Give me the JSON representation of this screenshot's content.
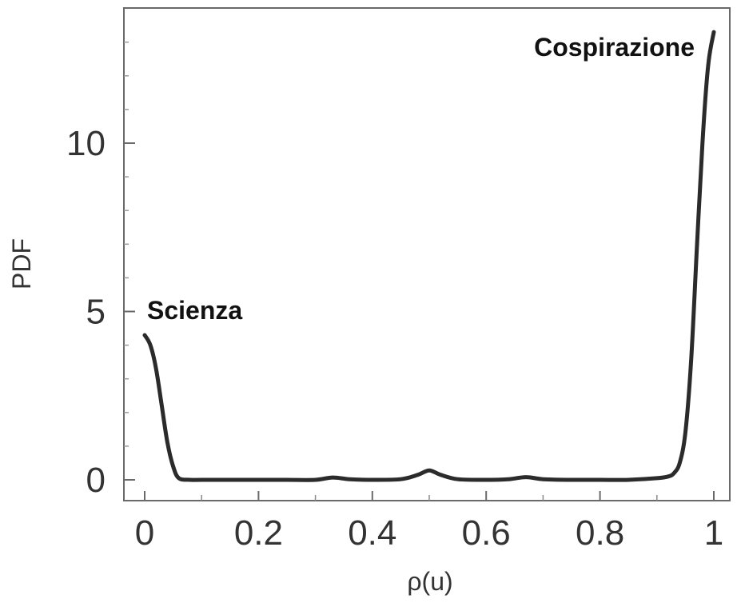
{
  "chart_data": {
    "type": "line",
    "title": "",
    "xlabel": "ρ(u)",
    "ylabel": "PDF",
    "xlim": [
      0,
      1.0
    ],
    "ylim": [
      -0.5,
      14
    ],
    "x_ticks": [
      0,
      0.2,
      0.4,
      0.6,
      0.8,
      1
    ],
    "x_tick_labels": [
      "0",
      "0.2",
      "0.4",
      "0.6",
      "0.8",
      "1"
    ],
    "y_ticks": [
      0,
      5,
      10
    ],
    "y_tick_labels": [
      "0",
      "5",
      "10"
    ],
    "grid": false,
    "legend": "none",
    "line_color": "#2b2b2b",
    "series": [
      {
        "x": [
          0,
          0.01,
          0.02,
          0.03,
          0.04,
          0.05,
          0.06,
          0.08,
          0.1,
          0.15,
          0.2,
          0.25,
          0.3,
          0.33,
          0.36,
          0.4,
          0.45,
          0.48,
          0.5,
          0.52,
          0.55,
          0.6,
          0.64,
          0.67,
          0.7,
          0.75,
          0.8,
          0.85,
          0.9,
          0.92,
          0.93,
          0.94,
          0.95,
          0.96,
          0.97,
          0.98,
          0.99,
          1.0
        ],
        "y": [
          4.3,
          4.0,
          3.3,
          2.2,
          1.1,
          0.4,
          0.05,
          0.0,
          0.0,
          0.0,
          0.0,
          0.0,
          0.0,
          0.07,
          0.02,
          0.0,
          0.02,
          0.15,
          0.28,
          0.15,
          0.02,
          0.0,
          0.02,
          0.08,
          0.02,
          0.0,
          0.0,
          0.0,
          0.05,
          0.1,
          0.2,
          0.5,
          1.4,
          3.5,
          6.8,
          10.0,
          12.3,
          13.3
        ]
      }
    ],
    "annotations": [
      {
        "text": "Scienza",
        "x": 0.0,
        "y": 4.3
      },
      {
        "text": "Cospirazione",
        "x": 1.0,
        "y": 13.3
      }
    ]
  }
}
